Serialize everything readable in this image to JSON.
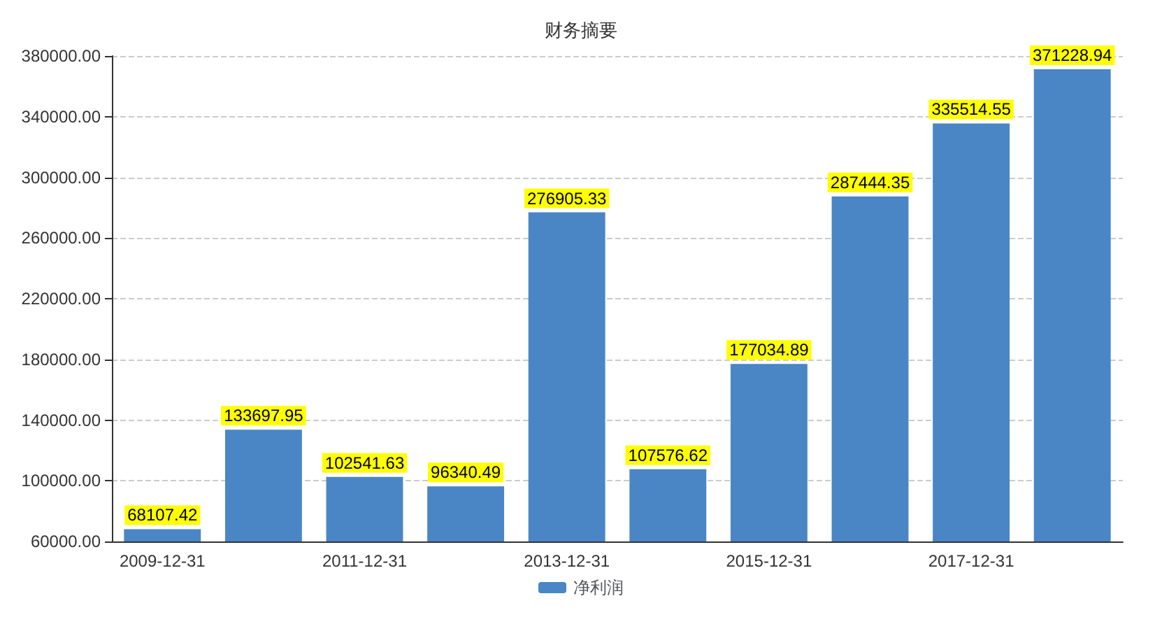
{
  "chart_data": {
    "type": "bar",
    "title": "财务摘要",
    "categories": [
      "2009-12-31",
      null,
      "2011-12-31",
      null,
      "2013-12-31",
      null,
      "2015-12-31",
      null,
      "2017-12-31",
      null
    ],
    "series": [
      {
        "name": "净利润",
        "color": "#4a86c5",
        "values": [
          68107.42,
          133697.95,
          102541.63,
          96340.49,
          276905.33,
          107576.62,
          177034.89,
          287444.35,
          335514.55,
          371228.94
        ]
      }
    ],
    "ylim": [
      60000,
      380000
    ],
    "yticks": [
      {
        "value": 60000,
        "label": "60000.00"
      },
      {
        "value": 100000,
        "label": "100000.00"
      },
      {
        "value": 140000,
        "label": "140000.00"
      },
      {
        "value": 180000,
        "label": "180000.00"
      },
      {
        "value": 220000,
        "label": "220000.00"
      },
      {
        "value": 260000,
        "label": "260000.00"
      },
      {
        "value": 300000,
        "label": "300000.00"
      },
      {
        "value": 340000,
        "label": "340000.00"
      },
      {
        "value": 380000,
        "label": "380000.00"
      }
    ],
    "data_labels": true,
    "grid": "y",
    "legend": "bottom"
  }
}
